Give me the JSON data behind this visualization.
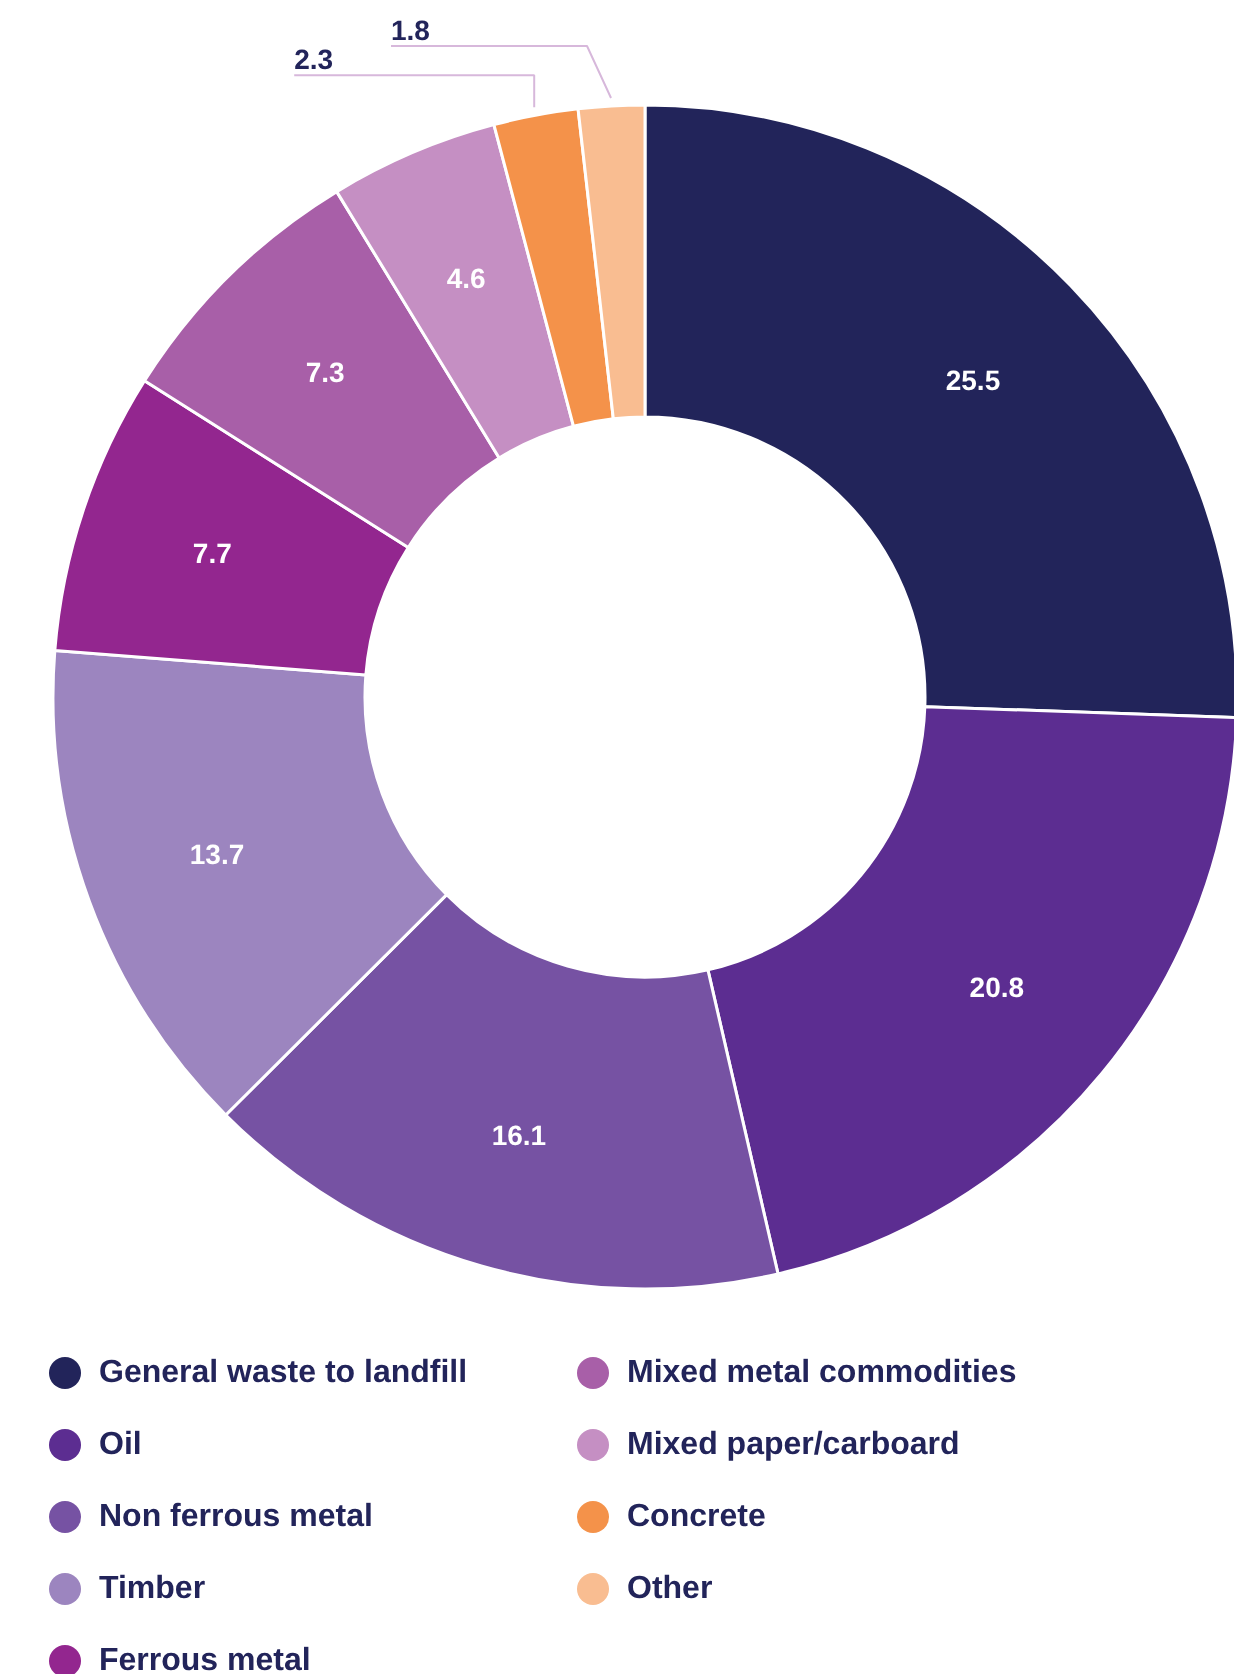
{
  "chart_data": {
    "type": "donut",
    "categories": [
      "General waste to landfill",
      "Oil",
      "Non ferrous metal",
      "Timber",
      "Ferrous metal",
      "Mixed metal commodities",
      "Mixed paper/carboard",
      "Concrete",
      "Other"
    ],
    "values": [
      25.5,
      20.8,
      16.1,
      13.7,
      7.7,
      7.3,
      4.6,
      2.3,
      1.8
    ],
    "colors": [
      "#22245a",
      "#5c2d91",
      "#7652a3",
      "#9c85bf",
      "#93268f",
      "#a85fa8",
      "#c58fc3",
      "#f4924a",
      "#f9bd91"
    ],
    "data_labels": true,
    "legend": "bottom"
  }
}
